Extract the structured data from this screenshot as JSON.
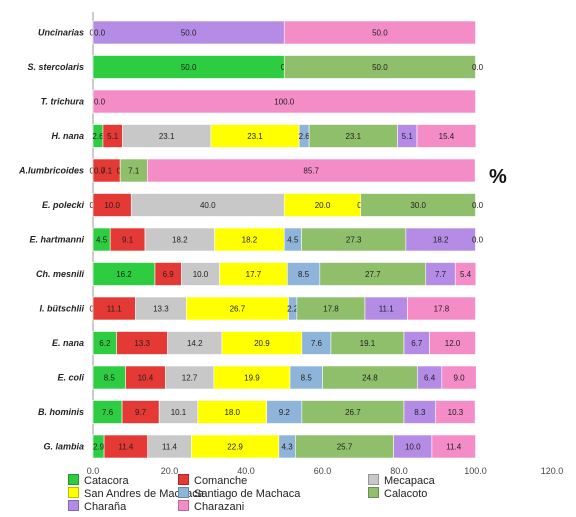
{
  "chart_data": {
    "type": "bar",
    "orientation": "horizontal",
    "stacked": true,
    "unit_label": "%",
    "xlim": [
      0,
      120
    ],
    "x_ticks": [
      "0.0",
      "20.0",
      "40.0",
      "60.0",
      "80.0",
      "100.0",
      "120.0"
    ],
    "categories": [
      "Uncinarias",
      "S. stercolaris",
      "T. trichura",
      "H. nana",
      "A.lumbricoides",
      "E. polecki",
      "E. hartmanni",
      "Ch. mesnili",
      "I. bütschlii",
      "E. nana",
      "E. coli",
      "B. hominis",
      "G. lambia"
    ],
    "series": [
      {
        "name": "Catacora",
        "color": "#2ecc40",
        "values": [
          0,
          50,
          0,
          2.6,
          0,
          0,
          4.5,
          16.2,
          0,
          6.2,
          8.5,
          7.6,
          2.9
        ],
        "labels": [
          "0.0",
          "50.0",
          "",
          "2.6",
          "0.0",
          "0.0",
          "4.5",
          "16.2",
          "0.0",
          "6.2",
          "8.5",
          "7.6",
          "2.9"
        ]
      },
      {
        "name": "Comanche",
        "color": "#e53935",
        "values": [
          0,
          0,
          0,
          5.1,
          7.1,
          10,
          9.1,
          6.9,
          11.1,
          13.3,
          10.4,
          9.7,
          11.4
        ],
        "labels": [
          "",
          "",
          "",
          "5.1",
          "7.1",
          "10.0",
          "9.1",
          "6.9",
          "11.1",
          "13.3",
          "10.4",
          "9.7",
          "11.4"
        ]
      },
      {
        "name": "Mecapaca",
        "color": "#c8c8c8",
        "values": [
          0,
          0,
          0,
          23.1,
          0,
          40,
          18.2,
          10,
          13.3,
          14.2,
          12.7,
          10.1,
          11.4
        ],
        "labels": [
          "",
          "",
          "",
          "23.1",
          "0.0",
          "40.0",
          "18.2",
          "10.0",
          "13.3",
          "14.2",
          "12.7",
          "10.1",
          "11.4"
        ]
      },
      {
        "name": "San Andres de Machaca",
        "color": "#ffff00",
        "values": [
          0,
          0,
          0,
          23.1,
          0,
          20,
          18.2,
          17.7,
          26.7,
          20.9,
          19.9,
          18,
          22.9
        ],
        "labels": [
          "",
          "",
          "",
          "23.1",
          "",
          "20.0",
          "18.2",
          "17.7",
          "26.7",
          "20.9",
          "19.9",
          "18.0",
          "22.9"
        ]
      },
      {
        "name": "Santiago de Machaca",
        "color": "#8fb4d9",
        "values": [
          0,
          0,
          0,
          2.6,
          0,
          0,
          4.5,
          8.5,
          2.2,
          7.6,
          8.5,
          9.2,
          4.3
        ],
        "labels": [
          "",
          "0.0",
          "",
          "2.6",
          "",
          "0.0",
          "4.5",
          "8.5",
          "2.2",
          "7.6",
          "8.5",
          "9.2",
          "4.3"
        ]
      },
      {
        "name": "Calacoto",
        "color": "#8fbf6a",
        "values": [
          0,
          50,
          0,
          23.1,
          7.1,
          30,
          27.3,
          27.7,
          17.8,
          19.1,
          24.8,
          26.7,
          25.7
        ],
        "labels": [
          "",
          "50.0",
          "",
          "23.1",
          "7.1",
          "30.0",
          "27.3",
          "27.7",
          "17.8",
          "19.1",
          "24.8",
          "26.7",
          "25.7"
        ]
      },
      {
        "name": "Charaña",
        "color": "#b48ce6",
        "values": [
          50,
          0,
          0,
          5.1,
          0,
          0,
          18.2,
          7.7,
          11.1,
          6.7,
          6.4,
          8.3,
          10
        ],
        "labels": [
          "50.0",
          "0.0",
          "",
          "5.1",
          "",
          "0.0",
          "18.2",
          "7.7",
          "11.1",
          "6.7",
          "6.4",
          "8.3",
          "10.0"
        ]
      },
      {
        "name": "Charazani",
        "color": "#f48cc8",
        "values": [
          50,
          0,
          100,
          15.4,
          85.7,
          0,
          0,
          5.4,
          17.8,
          12,
          9,
          10.3,
          11.4
        ],
        "labels": [
          "50.0",
          "",
          "100.0",
          "15.4",
          "85.7",
          "",
          "0.0",
          "5.4",
          "17.8",
          "12.0",
          "9.0",
          "10.3",
          "11.4"
        ]
      }
    ],
    "zero_labels": [
      "0.0",
      "",
      "0.0",
      "",
      "0.0",
      "",
      "",
      "",
      "",
      "",
      "",
      "",
      ""
    ],
    "grid": false,
    "legend_position": "bottom"
  }
}
